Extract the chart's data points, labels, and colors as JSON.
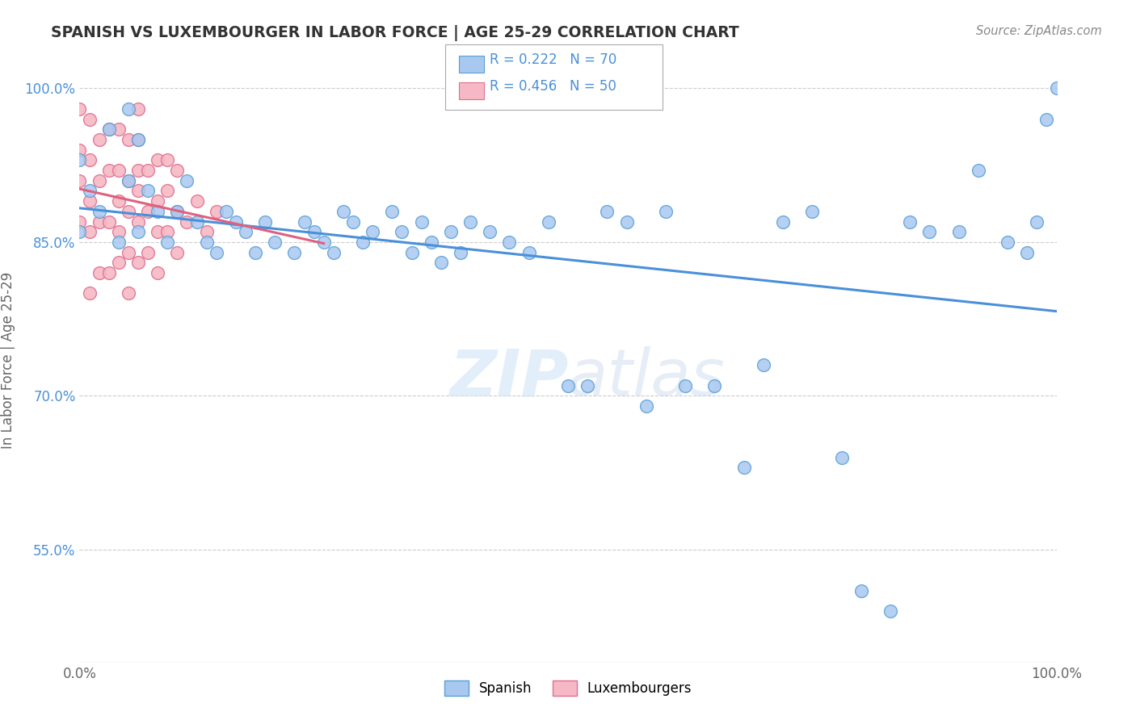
{
  "title": "SPANISH VS LUXEMBOURGER IN LABOR FORCE | AGE 25-29 CORRELATION CHART",
  "source": "Source: ZipAtlas.com",
  "ylabel": "In Labor Force | Age 25-29",
  "xlim": [
    0,
    1
  ],
  "ylim": [
    0.44,
    1.03
  ],
  "ytick_labels": [
    "55.0%",
    "70.0%",
    "85.0%",
    "100.0%"
  ],
  "ytick_values": [
    0.55,
    0.7,
    0.85,
    1.0
  ],
  "xtick_labels": [
    "0.0%",
    "100.0%"
  ],
  "xtick_values": [
    0.0,
    1.0
  ],
  "legend_r1": "R = 0.222",
  "legend_n1": "N = 70",
  "legend_r2": "R = 0.456",
  "legend_n2": "N = 50",
  "color_spanish": "#A8C8F0",
  "color_lux": "#F5B8C4",
  "color_spanish_edge": "#5A9FD4",
  "color_lux_edge": "#E07090",
  "line_color_spanish": "#4A90D9",
  "line_color_lux": "#E06080",
  "legend_label_spanish": "Spanish",
  "legend_label_lux": "Luxembourgers",
  "spanish_x": [
    0.0,
    0.0,
    0.01,
    0.02,
    0.03,
    0.04,
    0.05,
    0.05,
    0.06,
    0.06,
    0.07,
    0.08,
    0.09,
    0.1,
    0.11,
    0.12,
    0.13,
    0.14,
    0.15,
    0.16,
    0.17,
    0.18,
    0.19,
    0.2,
    0.22,
    0.23,
    0.24,
    0.25,
    0.26,
    0.27,
    0.28,
    0.29,
    0.3,
    0.32,
    0.33,
    0.34,
    0.35,
    0.36,
    0.37,
    0.38,
    0.39,
    0.4,
    0.42,
    0.44,
    0.46,
    0.48,
    0.5,
    0.52,
    0.54,
    0.56,
    0.58,
    0.6,
    0.62,
    0.65,
    0.68,
    0.7,
    0.72,
    0.75,
    0.78,
    0.8,
    0.83,
    0.85,
    0.87,
    0.9,
    0.92,
    0.95,
    0.97,
    0.98,
    0.99,
    1.0
  ],
  "spanish_y": [
    0.86,
    0.93,
    0.9,
    0.88,
    0.96,
    0.85,
    0.91,
    0.98,
    0.86,
    0.95,
    0.9,
    0.88,
    0.85,
    0.88,
    0.91,
    0.87,
    0.85,
    0.84,
    0.88,
    0.87,
    0.86,
    0.84,
    0.87,
    0.85,
    0.84,
    0.87,
    0.86,
    0.85,
    0.84,
    0.88,
    0.87,
    0.85,
    0.86,
    0.88,
    0.86,
    0.84,
    0.87,
    0.85,
    0.83,
    0.86,
    0.84,
    0.87,
    0.86,
    0.85,
    0.84,
    0.87,
    0.71,
    0.71,
    0.88,
    0.87,
    0.69,
    0.88,
    0.71,
    0.71,
    0.63,
    0.73,
    0.87,
    0.88,
    0.64,
    0.51,
    0.49,
    0.87,
    0.86,
    0.86,
    0.92,
    0.85,
    0.84,
    0.87,
    0.97,
    1.0
  ],
  "lux_x": [
    0.0,
    0.0,
    0.0,
    0.0,
    0.01,
    0.01,
    0.01,
    0.01,
    0.01,
    0.02,
    0.02,
    0.02,
    0.02,
    0.03,
    0.03,
    0.03,
    0.03,
    0.04,
    0.04,
    0.04,
    0.04,
    0.04,
    0.05,
    0.05,
    0.05,
    0.05,
    0.05,
    0.06,
    0.06,
    0.06,
    0.06,
    0.06,
    0.06,
    0.07,
    0.07,
    0.07,
    0.08,
    0.08,
    0.08,
    0.08,
    0.09,
    0.09,
    0.09,
    0.1,
    0.1,
    0.1,
    0.11,
    0.12,
    0.13,
    0.14
  ],
  "lux_y": [
    0.87,
    0.91,
    0.94,
    0.98,
    0.8,
    0.86,
    0.89,
    0.93,
    0.97,
    0.82,
    0.87,
    0.91,
    0.95,
    0.82,
    0.87,
    0.92,
    0.96,
    0.83,
    0.86,
    0.89,
    0.92,
    0.96,
    0.8,
    0.84,
    0.88,
    0.91,
    0.95,
    0.83,
    0.87,
    0.9,
    0.92,
    0.95,
    0.98,
    0.84,
    0.88,
    0.92,
    0.82,
    0.86,
    0.89,
    0.93,
    0.86,
    0.9,
    0.93,
    0.84,
    0.88,
    0.92,
    0.87,
    0.89,
    0.86,
    0.88
  ]
}
